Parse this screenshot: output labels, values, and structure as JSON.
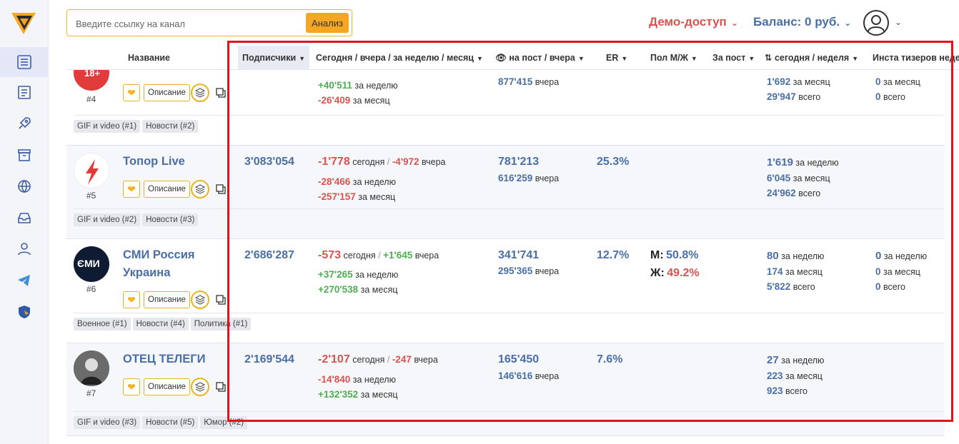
{
  "search": {
    "placeholder": "Введите ссылку на канал",
    "button_label": "Анализ"
  },
  "header": {
    "demo_label": "Демо-доступ",
    "balance_label": "Баланс: 0 руб."
  },
  "colors": {
    "accent": "#f5a623",
    "link": "#4a6fa5",
    "negative": "#d9534f",
    "positive": "#4caf50",
    "highlight": "#e0141e"
  },
  "columns": [
    "Название",
    "Подписчики",
    "Сегодня / вчера / за неделю / месяц",
    "на пост / вчера",
    "ER",
    "Пол М/Ж",
    "За пост",
    "сегодня / неделя",
    "Инста тизеров неделя"
  ],
  "labels": {
    "yesterday": "вчера",
    "today": "сегодня",
    "week": "за неделю",
    "month": "за месяц",
    "total": "всего",
    "sep": "/",
    "desc_button": "Описание",
    "male": "М:",
    "female": "Ж:"
  },
  "rows": [
    {
      "rank": "#4",
      "avatar_badge": "18+",
      "growth_week": "+40'511",
      "growth_month": "-26'409",
      "views_yesterday": "877'415",
      "reposts_month": "1'692",
      "reposts_total": "29'947",
      "insta_month": "0",
      "insta_total": "0",
      "tags": [
        "GIF и video (#1)",
        "Новости (#2)"
      ]
    },
    {
      "rank": "#5",
      "name": "Топор Live",
      "subscribers": "3'083'054",
      "growth_today": "-1'778",
      "growth_yesterday": "-4'972",
      "growth_week": "-28'466",
      "growth_month": "-257'157",
      "views_per_post": "781'213",
      "views_yesterday": "616'259",
      "er": "25.3%",
      "reposts_week": "1'619",
      "reposts_month": "6'045",
      "reposts_total": "24'962",
      "tags": [
        "GIF и video (#2)",
        "Новости (#3)"
      ]
    },
    {
      "rank": "#6",
      "name": "СМИ Россия Украина",
      "avatar_text": "ЄМИ",
      "subscribers": "2'686'287",
      "growth_today": "-573",
      "growth_yesterday": "+1'645",
      "growth_week": "+37'265",
      "growth_month": "+270'538",
      "views_per_post": "341'741",
      "views_yesterday": "295'365",
      "er": "12.7%",
      "male": "50.8%",
      "female": "49.2%",
      "reposts_week": "80",
      "reposts_month": "174",
      "reposts_total": "5'822",
      "insta_week": "0",
      "insta_month": "0",
      "insta_total": "0",
      "tags": [
        "Военное (#1)",
        "Новости (#4)",
        "Политика (#1)"
      ]
    },
    {
      "rank": "#7",
      "name": "ОТЕЦ ТЕЛЕГИ",
      "subscribers": "2'169'544",
      "growth_today": "-2'107",
      "growth_yesterday": "-247",
      "growth_week": "-14'840",
      "growth_month": "+132'352",
      "views_per_post": "165'450",
      "views_yesterday": "146'616",
      "er": "7.6%",
      "reposts_week": "27",
      "reposts_month": "223",
      "reposts_total": "923",
      "tags": [
        "GIF и video (#3)",
        "Новости (#5)",
        "Юмор (#2)"
      ]
    }
  ]
}
